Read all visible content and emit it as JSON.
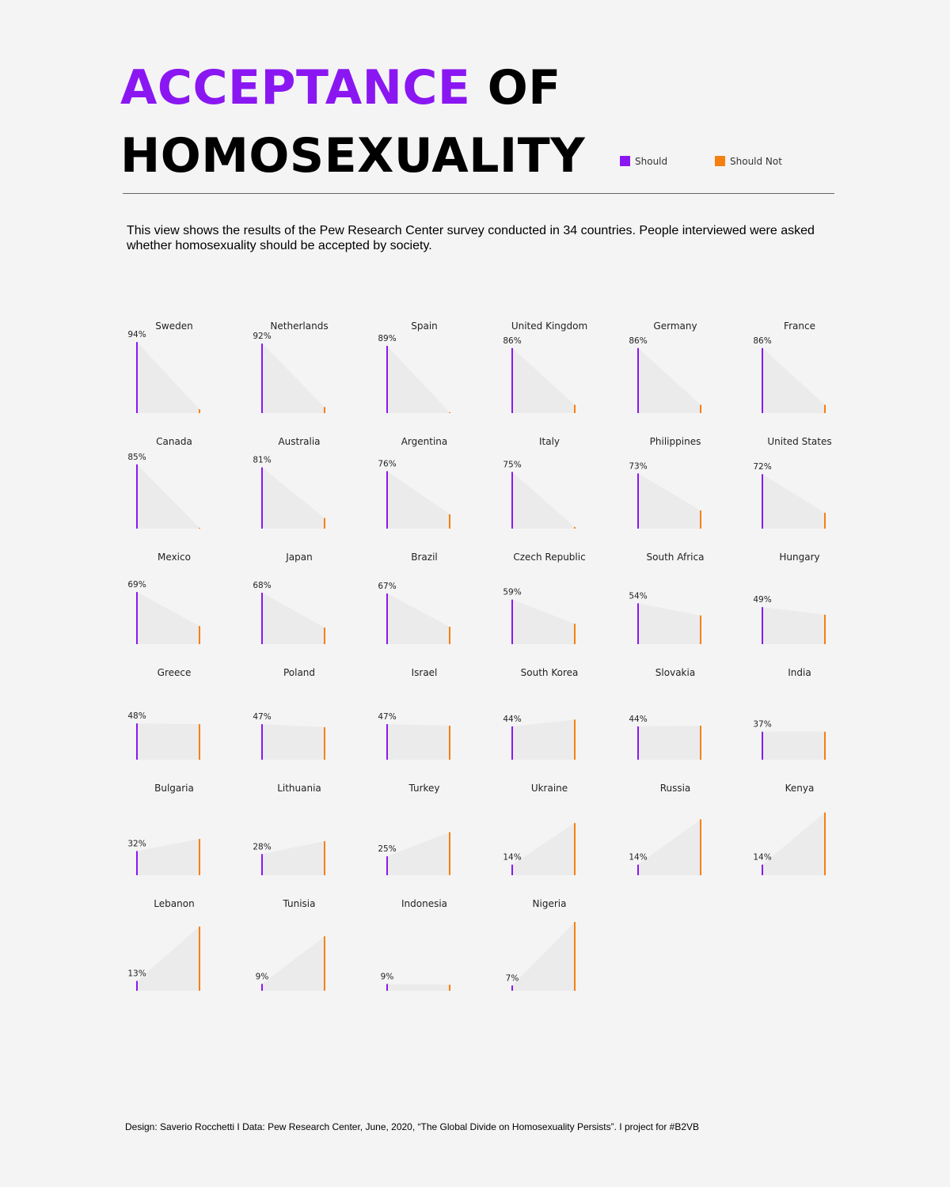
{
  "header": {
    "title_accent": "ACCEPTANCE",
    "title_rest_line1": "OF",
    "title_line2": "HOMOSEXUALITY"
  },
  "legend": {
    "items": [
      {
        "label": "Should",
        "color": "#8a17f2"
      },
      {
        "label": "Should Not",
        "color": "#f5800f"
      }
    ]
  },
  "subtitle": "This view shows the results of the Pew Research Center survey conducted in 34 countries. People interviewed were asked whether homosexuality should be accepted by society.",
  "footer": "Design: Saverio Rocchetti I Data: Pew Research Center, June, 2020, “The Global Divide on Homosexuality Persists”. I project for  #B2VB",
  "colors": {
    "should": "#8a17f2",
    "should_not": "#f5800f",
    "area": "#ebebeb"
  },
  "chart_data": {
    "type": "area",
    "series_names": [
      "Should",
      "Should Not"
    ],
    "value_unit": "%",
    "countries": [
      {
        "name": "Sweden",
        "should": 94,
        "should_not": 5
      },
      {
        "name": "Netherlands",
        "should": 92,
        "should_not": 8
      },
      {
        "name": "Spain",
        "should": 89,
        "should_not": 1
      },
      {
        "name": "United Kingdom",
        "should": 86,
        "should_not": 11
      },
      {
        "name": "Germany",
        "should": 86,
        "should_not": 11
      },
      {
        "name": "France",
        "should": 86,
        "should_not": 11
      },
      {
        "name": "Canada",
        "should": 85,
        "should_not": 1
      },
      {
        "name": "Australia",
        "should": 81,
        "should_not": 14
      },
      {
        "name": "Argentina",
        "should": 76,
        "should_not": 19
      },
      {
        "name": "Italy",
        "should": 75,
        "should_not": 2
      },
      {
        "name": "Philippines",
        "should": 73,
        "should_not": 24
      },
      {
        "name": "United States",
        "should": 72,
        "should_not": 21
      },
      {
        "name": "Mexico",
        "should": 69,
        "should_not": 24
      },
      {
        "name": "Japan",
        "should": 68,
        "should_not": 22
      },
      {
        "name": "Brazil",
        "should": 67,
        "should_not": 23
      },
      {
        "name": "Czech Republic",
        "should": 59,
        "should_not": 27
      },
      {
        "name": "South Africa",
        "should": 54,
        "should_not": 38
      },
      {
        "name": "Hungary",
        "should": 49,
        "should_not": 39
      },
      {
        "name": "Greece",
        "should": 48,
        "should_not": 47
      },
      {
        "name": "Poland",
        "should": 47,
        "should_not": 43
      },
      {
        "name": "Israel",
        "should": 47,
        "should_not": 45
      },
      {
        "name": "South Korea",
        "should": 44,
        "should_not": 53
      },
      {
        "name": "Slovakia",
        "should": 44,
        "should_not": 45
      },
      {
        "name": "India",
        "should": 37,
        "should_not": 37
      },
      {
        "name": "Bulgaria",
        "should": 32,
        "should_not": 48
      },
      {
        "name": "Lithuania",
        "should": 28,
        "should_not": 45
      },
      {
        "name": "Turkey",
        "should": 25,
        "should_not": 57
      },
      {
        "name": "Ukraine",
        "should": 14,
        "should_not": 69
      },
      {
        "name": "Russia",
        "should": 14,
        "should_not": 74
      },
      {
        "name": "Kenya",
        "should": 14,
        "should_not": 83
      },
      {
        "name": "Lebanon",
        "should": 13,
        "should_not": 85
      },
      {
        "name": "Tunisia",
        "should": 9,
        "should_not": 72
      },
      {
        "name": "Indonesia",
        "should": 9,
        "should_not": 8
      },
      {
        "name": "Nigeria",
        "should": 7,
        "should_not": 91
      }
    ]
  }
}
